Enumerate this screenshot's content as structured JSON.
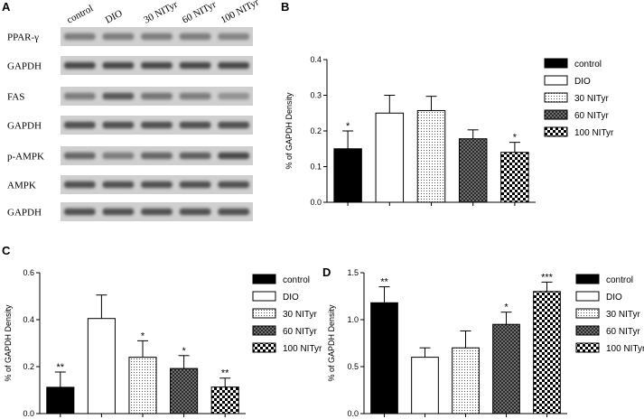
{
  "colors": {
    "black_fill": "#000000",
    "white_fill": "#ffffff",
    "blot_bg": "#cfcfcf",
    "band_dark": "#3a3a3a"
  },
  "panels": {
    "A": "A",
    "B": "B",
    "C": "C",
    "D": "D"
  },
  "blot": {
    "lanes": [
      "control",
      "DIO",
      "30 NITyr",
      "60 NITyr",
      "100 NITyr"
    ],
    "rows": [
      {
        "label": "PPAR-γ",
        "intensity": [
          0.55,
          0.55,
          0.55,
          0.55,
          0.5
        ]
      },
      {
        "label": "GAPDH",
        "intensity": [
          0.9,
          0.9,
          0.9,
          0.9,
          0.9
        ]
      },
      {
        "label": "FAS",
        "intensity": [
          0.55,
          0.8,
          0.6,
          0.55,
          0.4
        ]
      },
      {
        "label": "GAPDH",
        "intensity": [
          0.85,
          0.85,
          0.85,
          0.85,
          0.85
        ]
      },
      {
        "label": "p-AMPK",
        "intensity": [
          0.7,
          0.55,
          0.7,
          0.75,
          0.9
        ]
      },
      {
        "label": "AMPK",
        "intensity": [
          0.85,
          0.85,
          0.85,
          0.85,
          0.85
        ]
      },
      {
        "label": "GAPDH",
        "intensity": [
          0.85,
          0.85,
          0.85,
          0.85,
          0.85
        ]
      }
    ]
  },
  "chart_data": [
    {
      "panel": "B",
      "type": "bar",
      "categories": [
        "control",
        "DIO",
        "30 NITyr",
        "60 NITyr",
        "100 NITyr"
      ],
      "values": [
        0.15,
        0.25,
        0.257,
        0.178,
        0.14
      ],
      "errors": [
        0.05,
        0.05,
        0.04,
        0.025,
        0.028
      ],
      "significance": [
        "*",
        "",
        "",
        "",
        "*"
      ],
      "ylabel": "% of GAPDH Density",
      "ylim": [
        0,
        0.4
      ],
      "yticks": [
        0.0,
        0.1,
        0.2,
        0.3,
        0.4
      ],
      "ytick_labels": [
        "0.0",
        "0.1",
        "0.2",
        "0.3",
        "0.4"
      ],
      "legend": [
        "control",
        "DIO",
        "30 NITyr",
        "60 NITyr",
        "100 NITyr"
      ],
      "legend_position": "right",
      "patterns": [
        "solid-black",
        "white",
        "dots",
        "crosshatch",
        "checker"
      ]
    },
    {
      "panel": "C",
      "type": "bar",
      "categories": [
        "control",
        "DIO",
        "30 NITyr",
        "60 NITyr",
        "100 NITyr"
      ],
      "values": [
        0.112,
        0.405,
        0.24,
        0.192,
        0.113
      ],
      "errors": [
        0.065,
        0.1,
        0.07,
        0.055,
        0.038
      ],
      "significance": [
        "**",
        "",
        "*",
        "*",
        "**"
      ],
      "ylabel": "% of GAPDH Density",
      "ylim": [
        0,
        0.6
      ],
      "yticks": [
        0.0,
        0.2,
        0.4,
        0.6
      ],
      "ytick_labels": [
        "0.0",
        "0.2",
        "0.4",
        "0.6"
      ],
      "legend": [
        "control",
        "DIO",
        "30 NITyr",
        "60 NITyr",
        "100 NITyr"
      ],
      "legend_position": "right",
      "patterns": [
        "solid-black",
        "white",
        "dots",
        "crosshatch",
        "checker"
      ]
    },
    {
      "panel": "D",
      "type": "bar",
      "categories": [
        "control",
        "DIO",
        "30 NITyr",
        "60 NITyr",
        "100 NITyr"
      ],
      "values": [
        1.18,
        0.6,
        0.7,
        0.95,
        1.3
      ],
      "errors": [
        0.17,
        0.1,
        0.18,
        0.13,
        0.1
      ],
      "significance": [
        "**",
        "",
        "",
        "*",
        "***"
      ],
      "ylabel": "% of GAPDH Density",
      "ylim": [
        0,
        1.5
      ],
      "yticks": [
        0.0,
        0.5,
        1.0,
        1.5
      ],
      "ytick_labels": [
        "0.0",
        "0.5",
        "1.0",
        "1.5"
      ],
      "legend": [
        "control",
        "DIO",
        "30 NITyr",
        "60 NITyr",
        "100 NITyr"
      ],
      "legend_position": "right",
      "patterns": [
        "solid-black",
        "white",
        "dots",
        "crosshatch",
        "checker"
      ]
    }
  ]
}
